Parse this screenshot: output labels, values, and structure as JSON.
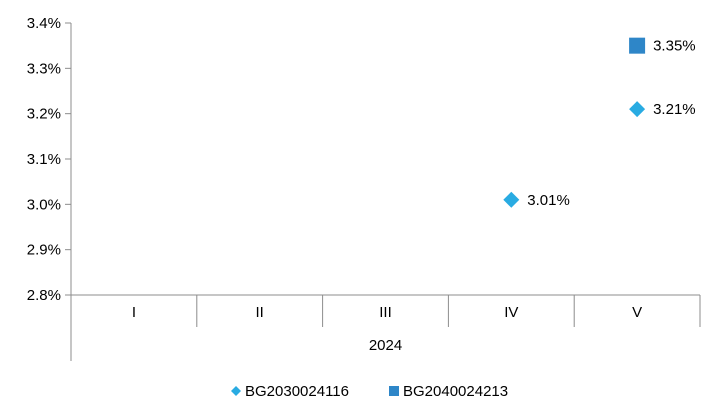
{
  "chart_data": {
    "type": "scatter",
    "categories": [
      "I",
      "II",
      "III",
      "IV",
      "V"
    ],
    "group_label": "2024",
    "y_ticks": [
      "2.8%",
      "2.9%",
      "3.0%",
      "3.1%",
      "3.2%",
      "3.3%",
      "3.4%"
    ],
    "ylim": [
      2.8,
      3.4
    ],
    "y_unit": "%",
    "grid": false,
    "legend_position": "bottom",
    "series": [
      {
        "name": "BG2030024116",
        "marker": "diamond",
        "color": "#29ABE2",
        "points": [
          {
            "category": "IV",
            "value": 3.01,
            "label": "3.01%"
          },
          {
            "category": "V",
            "value": 3.21,
            "label": "3.21%"
          }
        ]
      },
      {
        "name": "BG2040024213",
        "marker": "square",
        "color": "#2E86C8",
        "points": [
          {
            "category": "V",
            "value": 3.35,
            "label": "3.35%"
          }
        ]
      }
    ]
  }
}
